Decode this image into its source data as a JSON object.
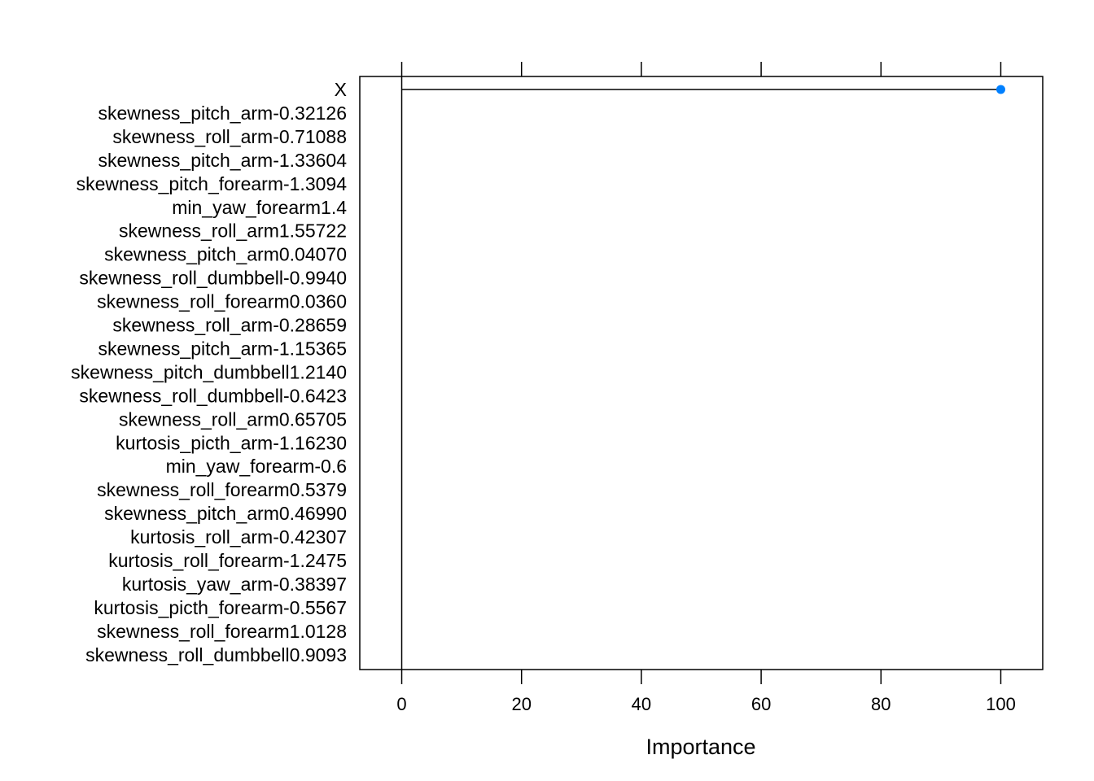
{
  "chart_data": {
    "type": "dotplot",
    "xlabel": "Importance",
    "xlim": [
      -7,
      107
    ],
    "x_ticks": [
      "0",
      "20",
      "40",
      "60",
      "80",
      "100"
    ],
    "x_tick_values": [
      0,
      20,
      40,
      60,
      80,
      100
    ],
    "categories": [
      "X",
      "skewness_pitch_arm-0.32126",
      "skewness_roll_arm-0.71088",
      "skewness_pitch_arm-1.33604",
      "skewness_pitch_forearm-1.3094",
      "min_yaw_forearm1.4",
      "skewness_roll_arm1.55722",
      "skewness_pitch_arm0.04070",
      "skewness_roll_dumbbell-0.9940",
      "skewness_roll_forearm0.0360",
      "skewness_roll_arm-0.28659",
      "skewness_pitch_arm-1.15365",
      "skewness_pitch_dumbbell1.2140",
      "skewness_roll_dumbbell-0.6423",
      "skewness_roll_arm0.65705",
      "kurtosis_picth_arm-1.16230",
      "min_yaw_forearm-0.6",
      "skewness_roll_forearm0.5379",
      "skewness_pitch_arm0.46990",
      "kurtosis_roll_arm-0.42307",
      "kurtosis_roll_forearm-1.2475",
      "kurtosis_yaw_arm-0.38397",
      "kurtosis_picth_forearm-0.5567",
      "skewness_roll_forearm1.0128",
      "skewness_roll_dumbbell0.9093"
    ],
    "values": [
      100,
      0,
      0,
      0,
      0,
      0,
      0,
      0,
      0,
      0,
      0,
      0,
      0,
      0,
      0,
      0,
      0,
      0,
      0,
      0,
      0,
      0,
      0,
      0,
      0
    ],
    "point_color": "#0080ff",
    "reference_line": 0
  }
}
